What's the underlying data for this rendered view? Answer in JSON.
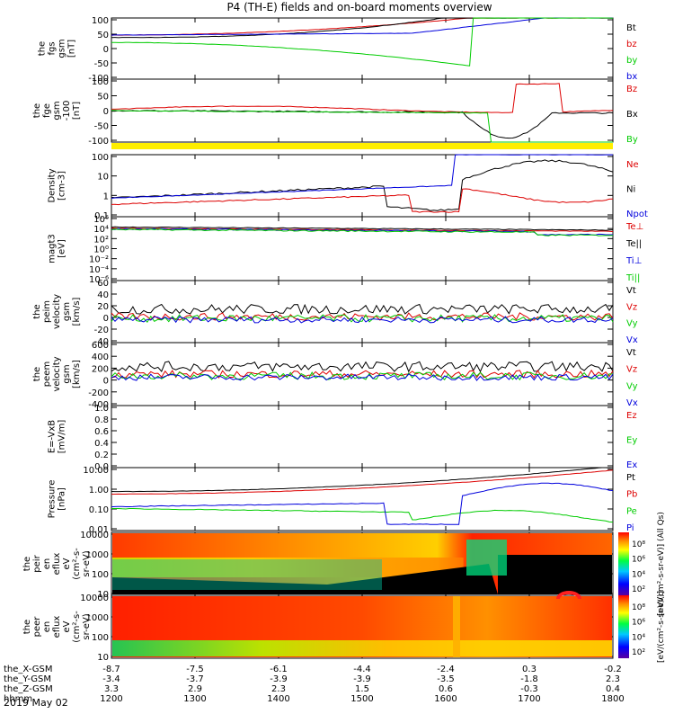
{
  "title": "P4 (TH-E) fields and on-board moments overview",
  "date_label": "2019 May 02",
  "orbit_rows": [
    {
      "label": "the_X-GSM",
      "values": [
        "-8.7",
        "-7.5",
        "-6.1",
        "-4.4",
        "-2.4",
        "0.3",
        "-0.2"
      ]
    },
    {
      "label": "the_Y-GSM",
      "values": [
        "-3.4",
        "-3.7",
        "-3.9",
        "-3.9",
        "-3.5",
        "-1.8",
        "2.3"
      ]
    },
    {
      "label": "the_Z-GSM",
      "values": [
        "3.3",
        "2.9",
        "2.3",
        "1.5",
        "0.6",
        "-0.3",
        "0.4"
      ]
    },
    {
      "label": "hhmm",
      "values": [
        "1200",
        "1300",
        "1400",
        "1500",
        "1600",
        "1700",
        "1800"
      ]
    }
  ],
  "colors": {
    "black": "#000000",
    "red": "#dd0000",
    "green": "#00cc00",
    "blue": "#0000dd",
    "yellow": "#ffee00"
  },
  "chart_data": [
    {
      "type": "line",
      "id": "fgs",
      "ylabel": [
        "the",
        "fgs",
        "gsm",
        "[nT]"
      ],
      "yticks": [
        "100",
        "50",
        "0",
        "-50",
        "-100"
      ],
      "legend": [
        {
          "name": "Bt",
          "color": "black"
        },
        {
          "name": "bz",
          "color": "red"
        },
        {
          "name": "by",
          "color": "green"
        },
        {
          "name": "bx",
          "color": "blue"
        }
      ]
    },
    {
      "type": "line",
      "id": "fge",
      "ylabel": [
        "the",
        "fge",
        "gsm",
        "-100",
        "[nT]"
      ],
      "yticks": [
        "100",
        "50",
        "0",
        "-50",
        "-100"
      ],
      "legend": [
        {
          "name": "Bz",
          "color": "red"
        },
        {
          "name": "Bx",
          "color": "black"
        },
        {
          "name": "By",
          "color": "green"
        }
      ]
    },
    {
      "type": "line",
      "id": "density",
      "ylabel": [
        "Density",
        "[cm-3]"
      ],
      "yticks": [
        "100",
        "10",
        "1",
        "0.1"
      ],
      "legend": [
        {
          "name": "Ne",
          "color": "red"
        },
        {
          "name": "Ni",
          "color": "black"
        },
        {
          "name": "Npot",
          "color": "blue"
        }
      ]
    },
    {
      "type": "line",
      "id": "temp",
      "ylabel": [
        "magt3",
        "[eV]"
      ],
      "yticks": [
        "10⁶",
        "10⁴",
        "10²",
        "10⁰",
        "10⁻²",
        "10⁻⁴",
        "10⁻⁶"
      ],
      "legend": [
        {
          "name": "Te⊥",
          "color": "red"
        },
        {
          "name": "Te||",
          "color": "black"
        },
        {
          "name": "Ti⊥",
          "color": "blue"
        },
        {
          "name": "Ti||",
          "color": "green"
        }
      ]
    },
    {
      "type": "line",
      "id": "peim",
      "ylabel": [
        "the",
        "peim",
        "velocity",
        "gsm",
        "[km/s]"
      ],
      "yticks": [
        "60",
        "40",
        "20",
        "0",
        "-20",
        "-40"
      ],
      "legend": [
        {
          "name": "Vt",
          "color": "black"
        },
        {
          "name": "Vz",
          "color": "red"
        },
        {
          "name": "Vy",
          "color": "green"
        },
        {
          "name": "Vx",
          "color": "blue"
        }
      ]
    },
    {
      "type": "line",
      "id": "peem",
      "ylabel": [
        "the",
        "peem",
        "velocity",
        "gsm",
        "[km/s]"
      ],
      "yticks": [
        "600",
        "400",
        "200",
        "0",
        "-200",
        "-400"
      ],
      "legend": [
        {
          "name": "Vt",
          "color": "black"
        },
        {
          "name": "Vz",
          "color": "red"
        },
        {
          "name": "Vy",
          "color": "green"
        },
        {
          "name": "Vx",
          "color": "blue"
        }
      ]
    },
    {
      "type": "line",
      "id": "efield",
      "ylabel": [
        "E=-VxB",
        "[mV/m]"
      ],
      "yticks": [
        "1.0",
        "0.8",
        "0.6",
        "0.4",
        "0.2",
        "0.0"
      ],
      "legend": [
        {
          "name": "Ez",
          "color": "red"
        },
        {
          "name": "Ey",
          "color": "green"
        },
        {
          "name": "Ex",
          "color": "blue"
        }
      ]
    },
    {
      "type": "line",
      "id": "pressure",
      "ylabel": [
        "Pressure",
        "[nPa]"
      ],
      "yticks": [
        "10.00",
        "1.00",
        "0.10",
        "0.01"
      ],
      "legend": [
        {
          "name": "Pt",
          "color": "black"
        },
        {
          "name": "Pb",
          "color": "red"
        },
        {
          "name": "Pe",
          "color": "green"
        },
        {
          "name": "Pi",
          "color": "blue"
        }
      ]
    },
    {
      "type": "heatmap",
      "id": "peir",
      "ylabel": [
        "the",
        "peir",
        "en",
        "eflux",
        "eV",
        "(cm²-s-",
        "sr-eV)"
      ],
      "yticks": [
        "10000",
        "1000",
        "100",
        "10"
      ],
      "colorbar_ticks": [
        "10⁸",
        "10⁶",
        "10⁴",
        "10²"
      ],
      "colorbar_label": "[eV/(cm²-s-sr-eV)] (All Qs)"
    },
    {
      "type": "heatmap",
      "id": "peer",
      "ylabel": [
        "the",
        "peer",
        "en",
        "eflux",
        "eV",
        "(cm²-s-",
        "sr-eV)"
      ],
      "yticks": [
        "10000",
        "1000",
        "100",
        "10"
      ],
      "colorbar_ticks": [
        "10⁸",
        "10⁶",
        "10⁴",
        "10²"
      ],
      "colorbar_label": "[eV/(cm²-s-sr-eV)]"
    }
  ]
}
